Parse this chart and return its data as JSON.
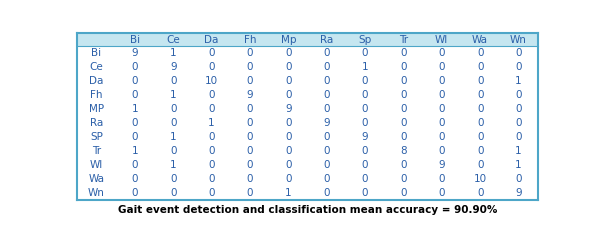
{
  "col_headers": [
    "",
    "Bi",
    "Ce",
    "Da",
    "Fh",
    "Mp",
    "Ra",
    "Sp",
    "Tr",
    "Wl",
    "Wa",
    "Wn"
  ],
  "row_headers": [
    "Bi",
    "Ce",
    "Da",
    "Fh",
    "MP",
    "Ra",
    "SP",
    "Tr",
    "Wl",
    "Wa",
    "Wn"
  ],
  "matrix": [
    [
      9,
      1,
      0,
      0,
      0,
      0,
      0,
      0,
      0,
      0,
      0
    ],
    [
      0,
      9,
      0,
      0,
      0,
      0,
      1,
      0,
      0,
      0,
      0
    ],
    [
      0,
      0,
      10,
      0,
      0,
      0,
      0,
      0,
      0,
      0,
      1
    ],
    [
      0,
      1,
      0,
      9,
      0,
      0,
      0,
      0,
      0,
      0,
      0
    ],
    [
      1,
      0,
      0,
      0,
      9,
      0,
      0,
      0,
      0,
      0,
      0
    ],
    [
      0,
      0,
      1,
      0,
      0,
      9,
      0,
      0,
      0,
      0,
      0
    ],
    [
      0,
      1,
      0,
      0,
      0,
      0,
      9,
      0,
      0,
      0,
      0
    ],
    [
      1,
      0,
      0,
      0,
      0,
      0,
      0,
      8,
      0,
      0,
      1
    ],
    [
      0,
      1,
      0,
      0,
      0,
      0,
      0,
      0,
      9,
      0,
      1
    ],
    [
      0,
      0,
      0,
      0,
      0,
      0,
      0,
      0,
      0,
      10,
      0
    ],
    [
      0,
      0,
      0,
      0,
      1,
      0,
      0,
      0,
      0,
      0,
      9
    ]
  ],
  "caption": "Gait event detection and classification mean accuracy = 90.90%",
  "header_bg": "#c5e6f0",
  "table_bg": "#ffffff",
  "outer_border_color": "#4da6c8",
  "text_color": "#2b5fa8",
  "header_fontsize": 7.5,
  "cell_fontsize": 7.5,
  "caption_fontsize": 7.5,
  "top_border_color": "#4da6c8",
  "bottom_border_color": "#4da6c8"
}
